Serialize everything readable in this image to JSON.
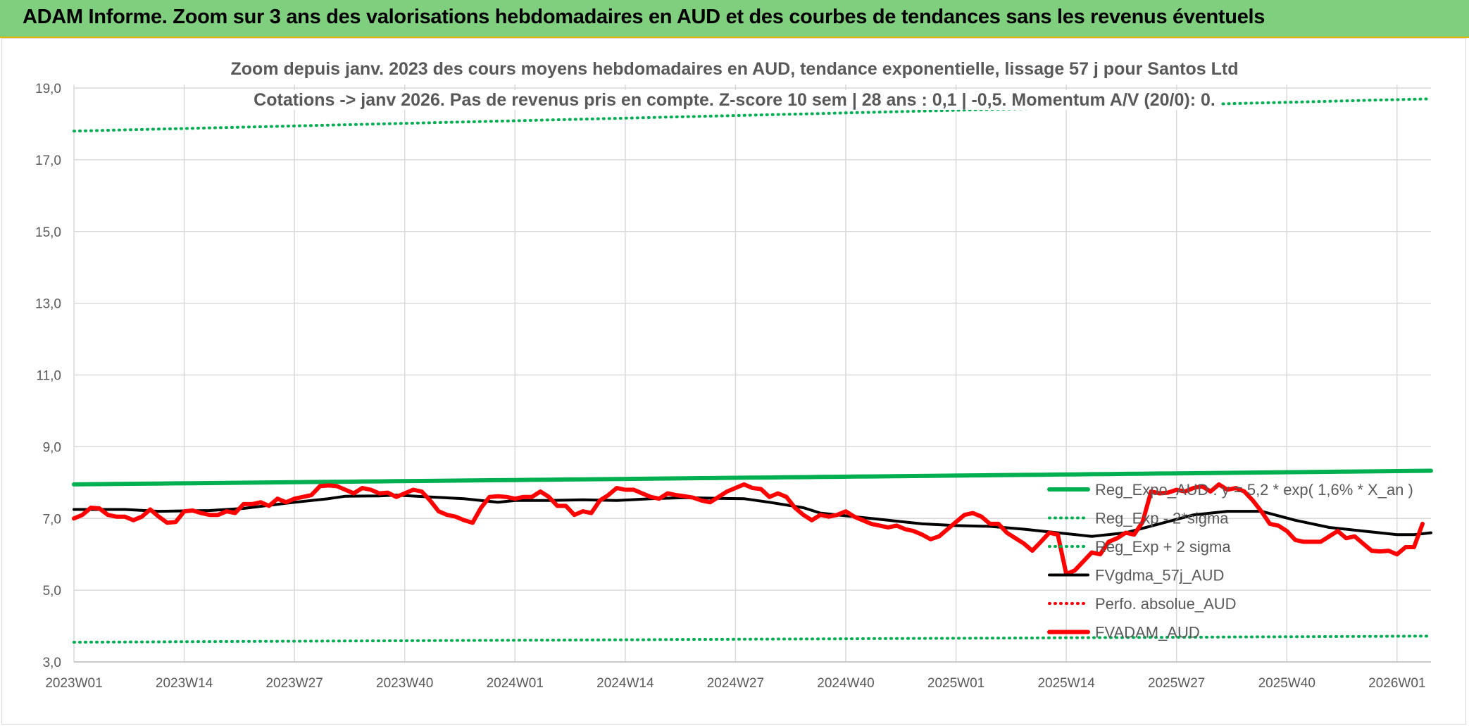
{
  "header": {
    "title": "ADAM Informe. Zoom sur 3 ans des valorisations hebdomadaires en AUD et des courbes de tendances sans les revenus éventuels"
  },
  "chart_data": {
    "type": "line",
    "title_line1": "Zoom depuis janv. 2023 des cours moyens hebdomadaires en AUD, tendance exponentielle, lissage 57 j pour Santos Ltd",
    "title_line2": "Cotations -> janv 2026. Pas de revenus pris en compte. Z-score 10 sem | 28 ans : 0,1 | -0,5. Momentum A/V (20/0): 0.",
    "ylim": [
      3,
      19
    ],
    "y_ticks": [
      "3,0",
      "5,0",
      "7,0",
      "9,0",
      "11,0",
      "13,0",
      "15,0",
      "17,0",
      "19,0"
    ],
    "y_tick_values": [
      3,
      5,
      7,
      9,
      11,
      13,
      15,
      17,
      19
    ],
    "x_ticks": [
      "2023W01",
      "2023W14",
      "2023W27",
      "2023W40",
      "2024W01",
      "2024W14",
      "2024W27",
      "2024W40",
      "2025W01",
      "2025W14",
      "2025W27",
      "2025W40",
      "2026W01"
    ],
    "x_tick_weeks": [
      0,
      13,
      26,
      39,
      52,
      65,
      78,
      91,
      104,
      117,
      130,
      143,
      156
    ],
    "x_max_week": 160,
    "grid": true,
    "legend_position": "bottom-right",
    "series": [
      {
        "name": "Reg_Expo_AUD : y = 5,2 * exp( 1,6% * X_an )",
        "color": "#00b050",
        "style": "solid-thick",
        "start": 7.95,
        "end": 8.33
      },
      {
        "name": "Reg_Exp - 2*sigma",
        "color": "#00b050",
        "style": "dotted",
        "start": 3.55,
        "end": 3.72
      },
      {
        "name": "Reg_Exp + 2 sigma",
        "color": "#00b050",
        "style": "dotted",
        "start": 17.8,
        "end": 18.7
      },
      {
        "name": "FVgdma_57j_AUD",
        "color": "#000000",
        "style": "solid",
        "points": [
          [
            0,
            7.25
          ],
          [
            6,
            7.25
          ],
          [
            10,
            7.2
          ],
          [
            16,
            7.22
          ],
          [
            20,
            7.28
          ],
          [
            26,
            7.45
          ],
          [
            30,
            7.55
          ],
          [
            32,
            7.62
          ],
          [
            36,
            7.63
          ],
          [
            38,
            7.65
          ],
          [
            42,
            7.6
          ],
          [
            46,
            7.55
          ],
          [
            48,
            7.5
          ],
          [
            50,
            7.45
          ],
          [
            52,
            7.5
          ],
          [
            56,
            7.5
          ],
          [
            60,
            7.52
          ],
          [
            64,
            7.5
          ],
          [
            68,
            7.55
          ],
          [
            72,
            7.58
          ],
          [
            76,
            7.56
          ],
          [
            79,
            7.55
          ],
          [
            82,
            7.45
          ],
          [
            86,
            7.3
          ],
          [
            88,
            7.15
          ],
          [
            92,
            7.05
          ],
          [
            96,
            6.95
          ],
          [
            100,
            6.85
          ],
          [
            104,
            6.8
          ],
          [
            108,
            6.78
          ],
          [
            112,
            6.7
          ],
          [
            116,
            6.6
          ],
          [
            120,
            6.5
          ],
          [
            124,
            6.6
          ],
          [
            128,
            6.85
          ],
          [
            132,
            7.1
          ],
          [
            136,
            7.2
          ],
          [
            140,
            7.2
          ],
          [
            144,
            6.95
          ],
          [
            148,
            6.75
          ],
          [
            152,
            6.65
          ],
          [
            156,
            6.55
          ],
          [
            158,
            6.55
          ],
          [
            160,
            6.6
          ]
        ]
      },
      {
        "name": "Perfo. absolue_AUD",
        "color": "#ff0000",
        "style": "dotted",
        "points": []
      },
      {
        "name": "FVADAM_AUD",
        "color": "#ff0000",
        "style": "solid-thick",
        "points": [
          [
            0,
            7.0
          ],
          [
            1,
            7.1
          ],
          [
            2,
            7.3
          ],
          [
            3,
            7.28
          ],
          [
            4,
            7.1
          ],
          [
            5,
            7.05
          ],
          [
            6,
            7.05
          ],
          [
            7,
            6.95
          ],
          [
            8,
            7.05
          ],
          [
            9,
            7.25
          ],
          [
            10,
            7.05
          ],
          [
            11,
            6.88
          ],
          [
            12,
            6.9
          ],
          [
            13,
            7.2
          ],
          [
            14,
            7.22
          ],
          [
            15,
            7.15
          ],
          [
            16,
            7.1
          ],
          [
            17,
            7.1
          ],
          [
            18,
            7.2
          ],
          [
            19,
            7.15
          ],
          [
            20,
            7.4
          ],
          [
            21,
            7.4
          ],
          [
            22,
            7.45
          ],
          [
            23,
            7.35
          ],
          [
            24,
            7.55
          ],
          [
            25,
            7.45
          ],
          [
            26,
            7.55
          ],
          [
            27,
            7.6
          ],
          [
            28,
            7.65
          ],
          [
            29,
            7.9
          ],
          [
            30,
            7.92
          ],
          [
            31,
            7.9
          ],
          [
            32,
            7.8
          ],
          [
            33,
            7.7
          ],
          [
            34,
            7.85
          ],
          [
            35,
            7.8
          ],
          [
            36,
            7.7
          ],
          [
            37,
            7.72
          ],
          [
            38,
            7.6
          ],
          [
            39,
            7.7
          ],
          [
            40,
            7.8
          ],
          [
            41,
            7.75
          ],
          [
            42,
            7.5
          ],
          [
            43,
            7.2
          ],
          [
            44,
            7.1
          ],
          [
            45,
            7.05
          ],
          [
            46,
            6.95
          ],
          [
            47,
            6.88
          ],
          [
            48,
            7.3
          ],
          [
            49,
            7.6
          ],
          [
            50,
            7.62
          ],
          [
            51,
            7.6
          ],
          [
            52,
            7.55
          ],
          [
            53,
            7.6
          ],
          [
            54,
            7.6
          ],
          [
            55,
            7.75
          ],
          [
            56,
            7.6
          ],
          [
            57,
            7.35
          ],
          [
            58,
            7.35
          ],
          [
            59,
            7.1
          ],
          [
            60,
            7.2
          ],
          [
            61,
            7.15
          ],
          [
            62,
            7.5
          ],
          [
            63,
            7.65
          ],
          [
            64,
            7.85
          ],
          [
            65,
            7.8
          ],
          [
            66,
            7.8
          ],
          [
            67,
            7.7
          ],
          [
            68,
            7.6
          ],
          [
            69,
            7.55
          ],
          [
            70,
            7.7
          ],
          [
            71,
            7.65
          ],
          [
            72,
            7.62
          ],
          [
            73,
            7.58
          ],
          [
            74,
            7.5
          ],
          [
            75,
            7.45
          ],
          [
            76,
            7.6
          ],
          [
            77,
            7.75
          ],
          [
            78,
            7.85
          ],
          [
            79,
            7.95
          ],
          [
            80,
            7.85
          ],
          [
            81,
            7.82
          ],
          [
            82,
            7.6
          ],
          [
            83,
            7.7
          ],
          [
            84,
            7.6
          ],
          [
            85,
            7.3
          ],
          [
            86,
            7.1
          ],
          [
            87,
            6.95
          ],
          [
            88,
            7.1
          ],
          [
            89,
            7.05
          ],
          [
            90,
            7.1
          ],
          [
            91,
            7.2
          ],
          [
            92,
            7.05
          ],
          [
            93,
            6.95
          ],
          [
            94,
            6.85
          ],
          [
            95,
            6.8
          ],
          [
            96,
            6.75
          ],
          [
            97,
            6.8
          ],
          [
            98,
            6.7
          ],
          [
            99,
            6.65
          ],
          [
            100,
            6.55
          ],
          [
            101,
            6.42
          ],
          [
            102,
            6.5
          ],
          [
            103,
            6.7
          ],
          [
            104,
            6.9
          ],
          [
            105,
            7.1
          ],
          [
            106,
            7.15
          ],
          [
            107,
            7.05
          ],
          [
            108,
            6.85
          ],
          [
            109,
            6.85
          ],
          [
            110,
            6.6
          ],
          [
            111,
            6.45
          ],
          [
            112,
            6.3
          ],
          [
            113,
            6.1
          ],
          [
            114,
            6.35
          ],
          [
            115,
            6.6
          ],
          [
            116,
            6.55
          ],
          [
            117,
            5.45
          ],
          [
            118,
            5.55
          ],
          [
            119,
            5.8
          ],
          [
            120,
            6.05
          ],
          [
            121,
            6.0
          ],
          [
            122,
            6.35
          ],
          [
            123,
            6.45
          ],
          [
            124,
            6.6
          ],
          [
            125,
            6.55
          ],
          [
            126,
            6.9
          ],
          [
            127,
            7.75
          ],
          [
            128,
            7.7
          ],
          [
            129,
            7.72
          ],
          [
            130,
            7.8
          ],
          [
            131,
            7.75
          ],
          [
            132,
            7.85
          ],
          [
            133,
            7.9
          ],
          [
            134,
            7.75
          ],
          [
            135,
            7.95
          ],
          [
            136,
            7.8
          ],
          [
            137,
            7.85
          ],
          [
            138,
            7.75
          ],
          [
            139,
            7.5
          ],
          [
            140,
            7.2
          ],
          [
            141,
            6.85
          ],
          [
            142,
            6.8
          ],
          [
            143,
            6.65
          ],
          [
            144,
            6.4
          ],
          [
            145,
            6.35
          ],
          [
            146,
            6.35
          ],
          [
            147,
            6.35
          ],
          [
            148,
            6.5
          ],
          [
            149,
            6.65
          ],
          [
            150,
            6.45
          ],
          [
            151,
            6.5
          ],
          [
            152,
            6.3
          ],
          [
            153,
            6.1
          ],
          [
            154,
            6.08
          ],
          [
            155,
            6.1
          ],
          [
            156,
            6.0
          ],
          [
            157,
            6.2
          ],
          [
            158,
            6.2
          ],
          [
            159,
            6.85
          ]
        ]
      }
    ]
  }
}
